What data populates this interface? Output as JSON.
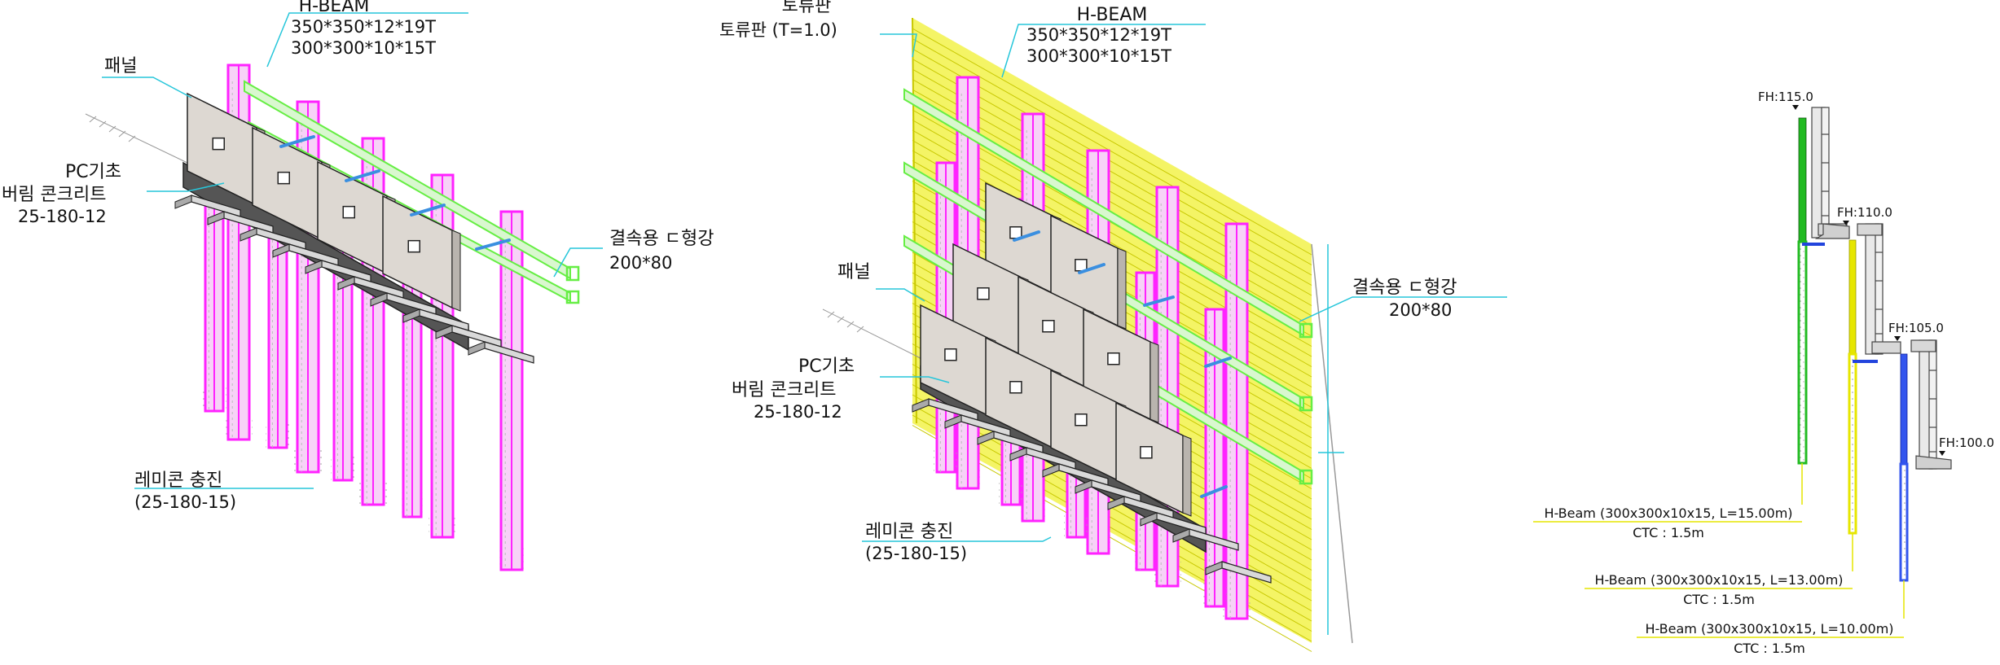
{
  "colors": {
    "beam": "#ff22ff",
    "beam_fill": "#f7d2f7",
    "rail": "#66ee44",
    "rail_fill": "#d9f7cf",
    "anchor": "#3a8fe0",
    "panel": "#ddd8d2",
    "panel_edge": "#222222",
    "footing": "#555555",
    "lagging": "#f2f24a",
    "leader": "#26c6da",
    "section_green": "#22bb22",
    "section_yellow": "#e6e600",
    "section_blue": "#2244dd"
  },
  "left": {
    "hbeam_title": "H-BEAM",
    "hbeam_spec1": "350*350*12*19T",
    "hbeam_spec2": "300*300*10*15T",
    "panel_label": "패널",
    "pc_label": "PC기초",
    "concrete_label": "버림 콘크리트",
    "concrete_spec": "25-180-12",
    "channel_label": "결속용 ㄷ형강",
    "channel_spec": "200*80",
    "fill_label": "레미콘 충진",
    "fill_spec": "(25-180-15)"
  },
  "middle": {
    "lagging_title": "토류판",
    "lagging_spec": "토류판 (T=1.0)",
    "hbeam_title": "H-BEAM",
    "hbeam_spec1": "350*350*12*19T",
    "hbeam_spec2": "300*300*10*15T",
    "panel_label": "패널",
    "pc_label": "PC기초",
    "concrete_label": "버림 콘크리트",
    "concrete_spec": "25-180-12",
    "channel_label": "결속용 ㄷ형강",
    "channel_spec": "200*80",
    "fill_label": "레미콘 충진",
    "fill_spec": "(25-180-15)"
  },
  "section": {
    "levels": [
      "FH:115.0",
      "FH:110.0",
      "FH:105.0",
      "FH:100.0"
    ],
    "piles": [
      {
        "label": "H-Beam (300x300x10x15, L=15.00m)",
        "ctc": "CTC : 1.5m"
      },
      {
        "label": "H-Beam (300x300x10x15, L=13.00m)",
        "ctc": "CTC : 1.5m"
      },
      {
        "label": "H-Beam (300x300x10x15, L=10.00m)",
        "ctc": "CTC : 1.5m"
      }
    ]
  }
}
